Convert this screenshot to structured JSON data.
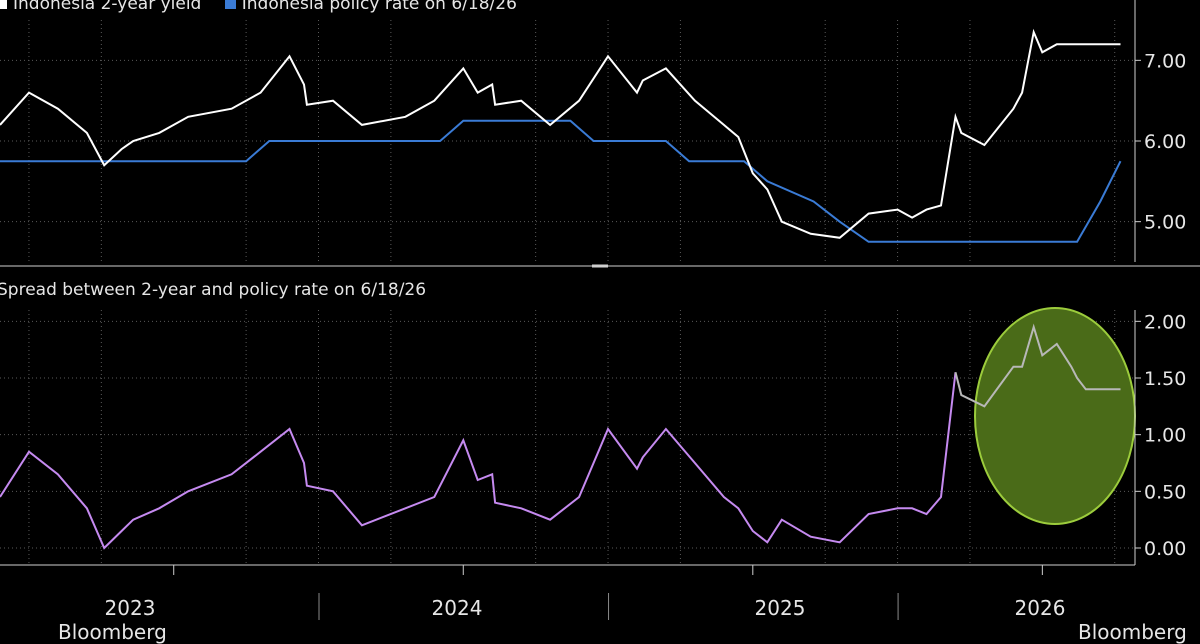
{
  "legend": {
    "series_a": "Indonesia 2-year yield",
    "series_b": "Indonesia policy rate on 6/18/26"
  },
  "bottom_title": "Spread between 2-year and policy rate on 6/18/26",
  "x_axis_years": [
    "2023",
    "2024",
    "2025",
    "2026"
  ],
  "corner_text_left": "Bloomberg",
  "corner_text_right": "Bloomberg",
  "colors": {
    "background": "#000000",
    "yield": "#ffffff",
    "policy": "#3a7bd5",
    "spread": "#c58af0",
    "spread_highlight": "#b8b8b8",
    "highlight_fill": "#4a6b18",
    "highlight_stroke": "#9ccc3c",
    "grid": "#5a5a5a"
  },
  "chart_data": [
    {
      "type": "line",
      "title": "",
      "x_unit": "year (decimal)",
      "ylim": [
        4.5,
        7.5
      ],
      "yticks": [
        "5.00",
        "6.00",
        "7.00"
      ],
      "grid": true,
      "legend_placement": "top-left",
      "series": [
        {
          "name": "Indonesia 2-year yield",
          "x": [
            2022.4,
            2022.5,
            2022.6,
            2022.7,
            2022.76,
            2022.82,
            2022.86,
            2022.95,
            2023.05,
            2023.2,
            2023.3,
            2023.4,
            2023.45,
            2023.46,
            2023.55,
            2023.65,
            2023.8,
            2023.9,
            2024.0,
            2024.05,
            2024.1,
            2024.11,
            2024.2,
            2024.3,
            2024.4,
            2024.5,
            2024.6,
            2024.62,
            2024.7,
            2024.8,
            2024.9,
            2024.95,
            2025.0,
            2025.05,
            2025.1,
            2025.2,
            2025.3,
            2025.4,
            2025.5,
            2025.55,
            2025.6,
            2025.65,
            2025.7,
            2025.72,
            2025.8,
            2025.9,
            2025.93,
            2025.97,
            2026.0,
            2026.05,
            2026.1,
            2026.12,
            2026.15,
            2026.2,
            2026.27
          ],
          "values": [
            6.2,
            6.6,
            6.4,
            6.1,
            5.7,
            5.9,
            6.0,
            6.1,
            6.3,
            6.4,
            6.6,
            7.05,
            6.7,
            6.45,
            6.5,
            6.2,
            6.3,
            6.5,
            6.9,
            6.6,
            6.7,
            6.45,
            6.5,
            6.2,
            6.5,
            7.05,
            6.6,
            6.75,
            6.9,
            6.5,
            6.2,
            6.05,
            5.6,
            5.4,
            5.0,
            4.85,
            4.8,
            5.1,
            5.15,
            5.05,
            5.15,
            5.2,
            6.3,
            6.1,
            5.95,
            6.4,
            6.6,
            7.35,
            7.1,
            7.2,
            7.2,
            7.2,
            7.2,
            7.2,
            7.2
          ]
        },
        {
          "name": "Indonesia policy rate on 6/18/26",
          "x": [
            2022.4,
            2023.25,
            2023.33,
            2023.92,
            2024.0,
            2024.37,
            2024.45,
            2024.7,
            2024.78,
            2024.97,
            2025.05,
            2025.21,
            2025.3,
            2025.4,
            2025.55,
            2025.7,
            2025.85,
            2026.0,
            2026.05,
            2026.12,
            2026.2,
            2026.27
          ],
          "values": [
            5.75,
            5.75,
            6.0,
            6.0,
            6.25,
            6.25,
            6.0,
            6.0,
            5.75,
            5.75,
            5.5,
            5.25,
            5.0,
            4.75,
            4.75,
            4.75,
            4.75,
            4.75,
            4.75,
            4.75,
            5.25,
            5.75
          ]
        }
      ]
    },
    {
      "type": "line",
      "title": "Spread between 2-year and policy rate on 6/18/26",
      "ylim": [
        -0.15,
        2.1
      ],
      "yticks": [
        "0.00",
        "0.50",
        "1.00",
        "1.50",
        "2.00"
      ],
      "grid": true,
      "annotation": "ellipse highlighting 2026 spread",
      "series": [
        {
          "name": "",
          "x": [
            2022.4,
            2022.5,
            2022.6,
            2022.7,
            2022.76,
            2022.82,
            2022.86,
            2022.95,
            2023.05,
            2023.2,
            2023.3,
            2023.4,
            2023.45,
            2023.46,
            2023.55,
            2023.65,
            2023.8,
            2023.9,
            2024.0,
            2024.05,
            2024.1,
            2024.11,
            2024.2,
            2024.3,
            2024.4,
            2024.5,
            2024.6,
            2024.62,
            2024.7,
            2024.8,
            2024.9,
            2024.95,
            2025.0,
            2025.05,
            2025.1,
            2025.2,
            2025.3,
            2025.4,
            2025.5,
            2025.55,
            2025.6,
            2025.65,
            2025.7,
            2025.72,
            2025.8,
            2025.9,
            2025.93,
            2025.97,
            2026.0,
            2026.05,
            2026.1,
            2026.12,
            2026.15,
            2026.2,
            2026.27
          ],
          "values": [
            0.45,
            0.85,
            0.65,
            0.35,
            0.0,
            0.15,
            0.25,
            0.35,
            0.5,
            0.65,
            0.85,
            1.05,
            0.75,
            0.55,
            0.5,
            0.2,
            0.35,
            0.45,
            0.95,
            0.6,
            0.65,
            0.4,
            0.35,
            0.25,
            0.45,
            1.05,
            0.7,
            0.8,
            1.05,
            0.75,
            0.45,
            0.35,
            0.15,
            0.05,
            0.25,
            0.1,
            0.05,
            0.3,
            0.35,
            0.35,
            0.3,
            0.45,
            1.55,
            1.35,
            1.25,
            1.6,
            1.6,
            1.95,
            1.7,
            1.8,
            1.6,
            1.5,
            1.4,
            1.4,
            1.4
          ]
        }
      ]
    }
  ]
}
